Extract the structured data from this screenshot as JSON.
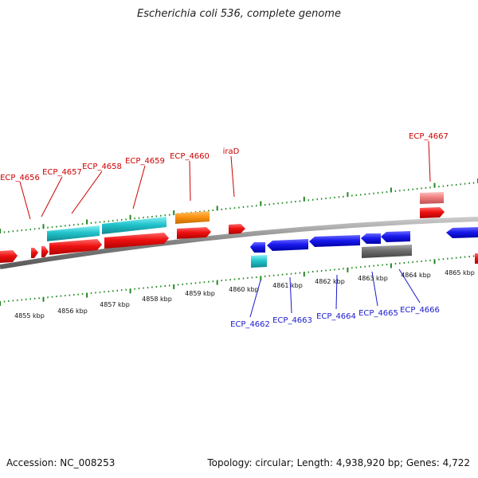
{
  "title": "Escherichia coli 536, complete genome",
  "footer": {
    "accession": "Accession: NC_008253",
    "summary": "Topology: circular; Length: 4,938,920 bp; Genes: 4,722"
  },
  "colors": {
    "forward_gene": "#ee1111",
    "reverse_gene": "#1a1aee",
    "cds_cyan": "#22c4cc",
    "orange": "#ff9410",
    "pink": "#ee8080",
    "gray": "#6e6e6e",
    "ticks": "#228822",
    "backbone": "#888888",
    "label_red": "#cc0000",
    "label_blue": "#1a1acc"
  },
  "scale_labels": [
    "4855 kbp",
    "4856 kbp",
    "4857 kbp",
    "4858 kbp",
    "4859 kbp",
    "4860 kbp",
    "4861 kbp",
    "4862 kbp",
    "4863 kbp",
    "4864 kbp",
    "4865 kbp"
  ],
  "forward_labels": [
    "ECP_4656",
    "ECP_4657",
    "ECP_4658",
    "ECP_4659",
    "ECP_4660",
    "iraD",
    "ECP_4667"
  ],
  "reverse_labels": [
    "ECP_4662",
    "ECP_4663",
    "ECP_4664",
    "ECP_4665",
    "ECP_4666"
  ]
}
